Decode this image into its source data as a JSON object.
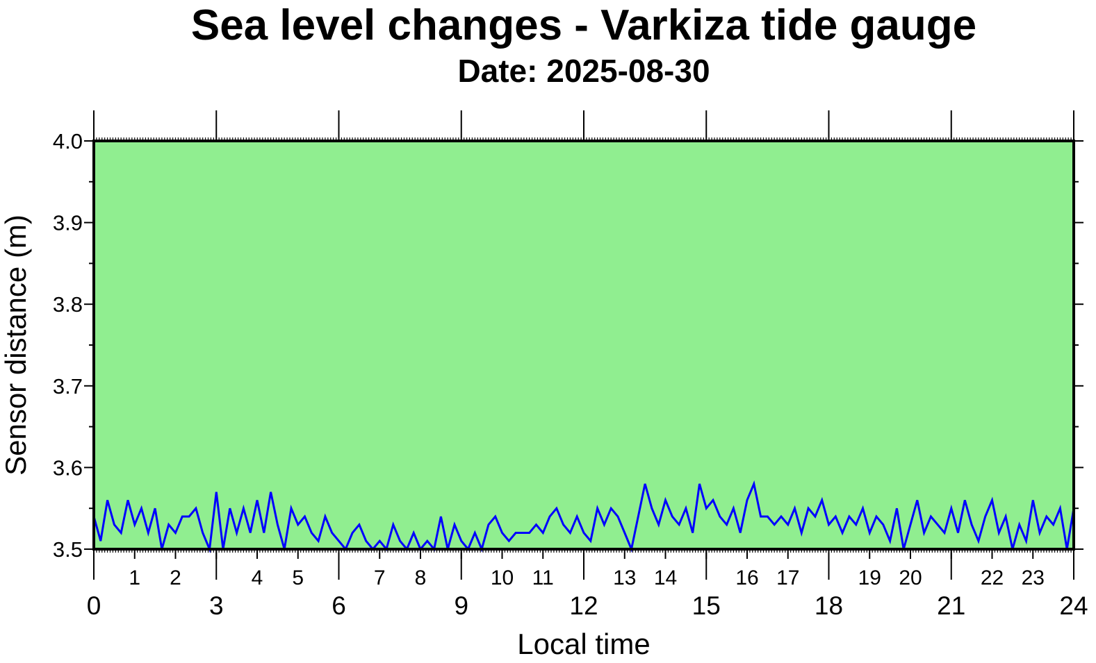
{
  "chart_data": {
    "type": "line",
    "title": "Sea level changes - Varkiza tide gauge",
    "subtitle": "Date: 2025-08-30",
    "xlabel": "Local time",
    "ylabel": "Sensor distance (m)",
    "xlim": [
      0,
      24
    ],
    "ylim": [
      3.5,
      4.0
    ],
    "x_major_ticks": [
      "0",
      "3",
      "6",
      "9",
      "12",
      "15",
      "18",
      "21",
      "24"
    ],
    "x_minor_ticks": [
      "1",
      "2",
      "4",
      "5",
      "7",
      "8",
      "10",
      "11",
      "13",
      "14",
      "16",
      "17",
      "19",
      "20",
      "22",
      "23"
    ],
    "y_ticks": [
      "3.5",
      "3.6",
      "3.7",
      "3.8",
      "3.9",
      "4.0"
    ],
    "background_color": "#90ee90",
    "line_color": "#0000ff",
    "x_step_hours": 0.16667,
    "series": [
      {
        "name": "Sensor distance",
        "values": [
          3.54,
          3.51,
          3.56,
          3.53,
          3.52,
          3.56,
          3.53,
          3.55,
          3.52,
          3.55,
          3.5,
          3.53,
          3.52,
          3.54,
          3.54,
          3.55,
          3.52,
          3.5,
          3.57,
          3.5,
          3.55,
          3.52,
          3.55,
          3.52,
          3.56,
          3.52,
          3.57,
          3.53,
          3.5,
          3.55,
          3.53,
          3.54,
          3.52,
          3.51,
          3.54,
          3.52,
          3.51,
          3.5,
          3.52,
          3.53,
          3.51,
          3.5,
          3.51,
          3.5,
          3.53,
          3.51,
          3.5,
          3.52,
          3.5,
          3.51,
          3.5,
          3.54,
          3.5,
          3.53,
          3.51,
          3.5,
          3.52,
          3.5,
          3.53,
          3.54,
          3.52,
          3.51,
          3.52,
          3.52,
          3.52,
          3.53,
          3.52,
          3.54,
          3.55,
          3.53,
          3.52,
          3.54,
          3.52,
          3.51,
          3.55,
          3.53,
          3.55,
          3.54,
          3.52,
          3.5,
          3.54,
          3.58,
          3.55,
          3.53,
          3.56,
          3.54,
          3.53,
          3.55,
          3.52,
          3.58,
          3.55,
          3.56,
          3.54,
          3.53,
          3.55,
          3.52,
          3.56,
          3.58,
          3.54,
          3.54,
          3.53,
          3.54,
          3.53,
          3.55,
          3.52,
          3.55,
          3.54,
          3.56,
          3.53,
          3.54,
          3.52,
          3.54,
          3.53,
          3.55,
          3.52,
          3.54,
          3.53,
          3.51,
          3.55,
          3.5,
          3.53,
          3.56,
          3.52,
          3.54,
          3.53,
          3.52,
          3.55,
          3.52,
          3.56,
          3.53,
          3.51,
          3.54,
          3.56,
          3.52,
          3.54,
          3.5,
          3.53,
          3.51,
          3.56,
          3.52,
          3.54,
          3.53,
          3.55,
          3.5,
          3.55
        ]
      }
    ]
  }
}
